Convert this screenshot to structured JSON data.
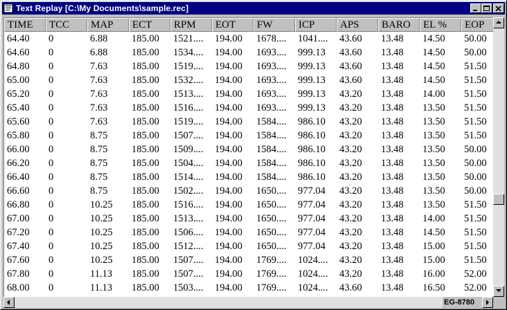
{
  "window": {
    "title": "Text Replay [C:\\My Documents\\sample.rec]"
  },
  "table": {
    "columns": [
      "TIME",
      "TCC",
      "MAP",
      "ECT",
      "RPM",
      "EOT",
      "FW",
      "ICP",
      "APS",
      "BARO",
      "EL %",
      "EOP"
    ],
    "rows": [
      [
        "64.40",
        "0",
        "6.88",
        "185.00",
        "1521....",
        "194.00",
        "1678....",
        "1041....",
        "43.60",
        "13.48",
        "14.50",
        "50.00"
      ],
      [
        "64.60",
        "0",
        "6.88",
        "185.00",
        "1534....",
        "194.00",
        "1693....",
        "999.13",
        "43.60",
        "13.48",
        "14.50",
        "50.00"
      ],
      [
        "64.80",
        "0",
        "7.63",
        "185.00",
        "1519....",
        "194.00",
        "1693....",
        "999.13",
        "43.60",
        "13.48",
        "14.50",
        "51.50"
      ],
      [
        "65.00",
        "0",
        "7.63",
        "185.00",
        "1532....",
        "194.00",
        "1693....",
        "999.13",
        "43.60",
        "13.48",
        "14.50",
        "51.50"
      ],
      [
        "65.20",
        "0",
        "7.63",
        "185.00",
        "1513....",
        "194.00",
        "1693....",
        "999.13",
        "43.20",
        "13.48",
        "14.00",
        "51.50"
      ],
      [
        "65.40",
        "0",
        "7.63",
        "185.00",
        "1516....",
        "194.00",
        "1693....",
        "999.13",
        "43.20",
        "13.48",
        "13.50",
        "51.50"
      ],
      [
        "65.60",
        "0",
        "7.63",
        "185.00",
        "1519....",
        "194.00",
        "1584....",
        "986.10",
        "43.20",
        "13.48",
        "13.50",
        "51.50"
      ],
      [
        "65.80",
        "0",
        "8.75",
        "185.00",
        "1507....",
        "194.00",
        "1584....",
        "986.10",
        "43.20",
        "13.48",
        "13.50",
        "51.50"
      ],
      [
        "66.00",
        "0",
        "8.75",
        "185.00",
        "1509....",
        "194.00",
        "1584....",
        "986.10",
        "43.20",
        "13.48",
        "13.50",
        "50.00"
      ],
      [
        "66.20",
        "0",
        "8.75",
        "185.00",
        "1504....",
        "194.00",
        "1584....",
        "986.10",
        "43.20",
        "13.48",
        "13.50",
        "50.00"
      ],
      [
        "66.40",
        "0",
        "8.75",
        "185.00",
        "1514....",
        "194.00",
        "1584....",
        "986.10",
        "43.20",
        "13.48",
        "13.50",
        "50.00"
      ],
      [
        "66.60",
        "0",
        "8.75",
        "185.00",
        "1502....",
        "194.00",
        "1650....",
        "977.04",
        "43.20",
        "13.48",
        "13.50",
        "50.00"
      ],
      [
        "66.80",
        "0",
        "10.25",
        "185.00",
        "1516....",
        "194.00",
        "1650....",
        "977.04",
        "43.20",
        "13.48",
        "13.50",
        "51.50"
      ],
      [
        "67.00",
        "0",
        "10.25",
        "185.00",
        "1513....",
        "194.00",
        "1650....",
        "977.04",
        "43.20",
        "13.48",
        "14.00",
        "51.50"
      ],
      [
        "67.20",
        "0",
        "10.25",
        "185.00",
        "1506....",
        "194.00",
        "1650....",
        "977.04",
        "43.20",
        "13.48",
        "14.50",
        "51.50"
      ],
      [
        "67.40",
        "0",
        "10.25",
        "185.00",
        "1512....",
        "194.00",
        "1650....",
        "977.04",
        "43.20",
        "13.48",
        "15.00",
        "51.50"
      ],
      [
        "67.60",
        "0",
        "10.25",
        "185.00",
        "1507....",
        "194.00",
        "1769....",
        "1024....",
        "43.20",
        "13.48",
        "15.00",
        "51.50"
      ],
      [
        "67.80",
        "0",
        "11.13",
        "185.00",
        "1507....",
        "194.00",
        "1769....",
        "1024....",
        "43.20",
        "13.48",
        "16.00",
        "52.00"
      ],
      [
        "68.00",
        "0",
        "11.13",
        "185.00",
        "1503....",
        "194.00",
        "1769....",
        "1024....",
        "43.60",
        "13.48",
        "16.50",
        "52.00"
      ]
    ]
  },
  "status": {
    "panel_text": "EG-8780"
  },
  "icons": {
    "minimize": "minimize-icon",
    "maximize": "maximize-icon",
    "close": "close-icon",
    "scroll_up": "scroll-up-arrow-icon",
    "scroll_down": "scroll-down-arrow-icon",
    "scroll_left": "scroll-left-arrow-icon",
    "scroll_right": "scroll-right-arrow-icon"
  },
  "colors": {
    "titlebar": "#000080",
    "face": "#c0c0c0",
    "grid_background": "#ffffff"
  }
}
